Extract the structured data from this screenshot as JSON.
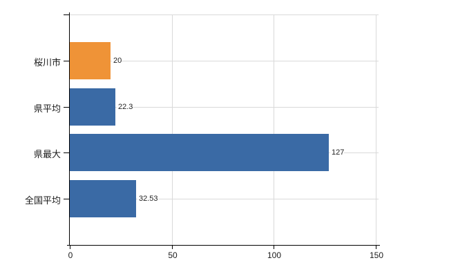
{
  "chart_data": {
    "type": "bar",
    "orientation": "horizontal",
    "title": "",
    "xlabel": "",
    "ylabel": "",
    "categories": [
      "桜川市",
      "県平均",
      "県最大",
      "全国平均"
    ],
    "values": [
      20,
      22.3,
      127,
      32.53
    ],
    "value_labels": [
      "20",
      "22.3",
      "127",
      "32.53"
    ],
    "series": [
      {
        "name": "",
        "values": [
          20,
          22.3,
          127,
          32.53
        ]
      }
    ],
    "bar_colors": [
      "#EF9337",
      "#3A6AA5",
      "#3A6AA5",
      "#3A6AA5"
    ],
    "x_ticks": [
      0,
      50,
      100,
      150
    ],
    "x_tick_labels": [
      "0",
      "50",
      "100",
      "150"
    ],
    "xlim": [
      0,
      151.6
    ],
    "grid": true,
    "legend": "none",
    "colors": {
      "grid": "#D9D9D9",
      "axis": "#000000",
      "text": "#1A1A1A",
      "background": "#FFFFFF",
      "highlight_bar": "#EF9337",
      "default_bar": "#3A6AA5"
    }
  }
}
